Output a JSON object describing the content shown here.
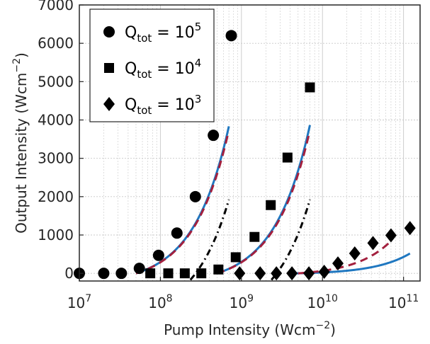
{
  "chart_data": {
    "type": "scatter",
    "title": "",
    "xlabel": "Pump Intensity (Wcm",
    "xlabel_unit_exp": "−2",
    "xlabel_close": ")",
    "ylabel": "Output Intensity (Wcm",
    "ylabel_unit_exp": "−2",
    "ylabel_close": ")",
    "x_scale": "log",
    "xlim": [
      10000000.0,
      160000000000.0
    ],
    "ylim": [
      -200,
      7000
    ],
    "x_ticks": [
      {
        "value": 10000000.0,
        "base": "10",
        "exp": "7"
      },
      {
        "value": 100000000.0,
        "base": "10",
        "exp": "8"
      },
      {
        "value": 1000000000.0,
        "base": "10",
        "exp": "9"
      },
      {
        "value": 10000000000.0,
        "base": "10",
        "exp": "10"
      },
      {
        "value": 100000000000.0,
        "base": "10",
        "exp": "11"
      }
    ],
    "y_ticks": [
      "0",
      "1000",
      "2000",
      "3000",
      "4000",
      "5000",
      "6000",
      "7000"
    ],
    "grid": true,
    "legend_position": "top-left",
    "colors": {
      "blue": "#1f77c0",
      "red": "#a3203e",
      "black": "#000000",
      "grid": "#c8c8c8"
    },
    "legend": [
      {
        "marker": "circle",
        "q": "Q",
        "sub": "tot",
        "eq": " = 10",
        "exp": "5"
      },
      {
        "marker": "square",
        "q": "Q",
        "sub": "tot",
        "eq": " = 10",
        "exp": "4"
      },
      {
        "marker": "diamond",
        "q": "Q",
        "sub": "tot",
        "eq": " = 10",
        "exp": "3"
      }
    ],
    "series": [
      {
        "marker": "circle",
        "x": [
          10000000.0,
          20000000.0,
          33000000.0,
          55000000.0,
          95000000.0,
          160000000.0,
          270000000.0,
          450000000.0,
          750000000.0
        ],
        "y": [
          0,
          0,
          0,
          130,
          470,
          1050,
          2000,
          3600,
          6200
        ]
      },
      {
        "marker": "square",
        "x": [
          75000000.0,
          125000000.0,
          200000000.0,
          320000000.0,
          520000000.0,
          850000000.0,
          1450000000.0,
          2300000000.0,
          3700000000.0,
          7000000000.0
        ],
        "y": [
          0,
          0,
          0,
          0,
          100,
          420,
          950,
          1780,
          3020,
          4850
        ]
      },
      {
        "marker": "diamond",
        "x": [
          950000000.0,
          1700000000.0,
          2700000000.0,
          4200000000.0,
          6800000000.0,
          10500000000.0,
          15500000000.0,
          25000000000.0,
          42000000000.0,
          70000000000.0,
          120000000000.0
        ],
        "y": [
          0,
          0,
          0,
          0,
          0,
          40,
          260,
          520,
          790,
          990,
          1180
        ]
      }
    ],
    "curves": [
      {
        "color": "blue",
        "style": "solid",
        "x0": 50000000.0,
        "x_end": 700000000.0,
        "k": 5.9,
        "offset": 0
      },
      {
        "color": "red",
        "style": "dashed",
        "x0": 50000000.0,
        "x_end": 680000000.0,
        "k": 5.75,
        "offset": 0
      },
      {
        "color": "black",
        "style": "dashdot",
        "x0": 50000000.0,
        "x_end": 700000000.0,
        "k": 4.5,
        "offset": 1000
      },
      {
        "color": "blue",
        "style": "solid",
        "x0": 500000000.0,
        "x_end": 7000000000.0,
        "k": 5.95,
        "offset": 0
      },
      {
        "color": "red",
        "style": "dashed",
        "x0": 500000000.0,
        "x_end": 6800000000.0,
        "k": 5.75,
        "offset": 0
      },
      {
        "color": "black",
        "style": "dashdot",
        "x0": 500000000.0,
        "x_end": 7000000000.0,
        "k": 4.5,
        "offset": 1000
      },
      {
        "color": "blue",
        "style": "solid",
        "x0": 4800000000.0,
        "x_end": 120000000000.0,
        "k": 0.45,
        "offset": 0
      },
      {
        "color": "red",
        "style": "dashed",
        "x0": 5000000000.0,
        "x_end": 70000000000.0,
        "k": 1.3,
        "offset": 0
      },
      {
        "color": "black",
        "style": "dashdot",
        "x0": 5000000000.0,
        "x_end": 120000000000.0,
        "k": 0.48,
        "offset": 1000
      }
    ]
  }
}
